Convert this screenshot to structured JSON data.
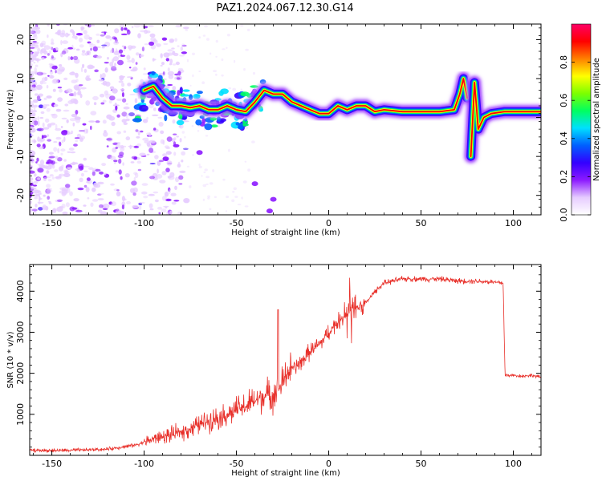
{
  "title": "PAZ1.2024.067.12.30.G14",
  "chart_data": [
    {
      "type": "heatmap",
      "xlabel": "Height of straight line (km)",
      "ylabel": "Frequency (Hz)",
      "xlim": [
        -162,
        115
      ],
      "ylim": [
        -25,
        24
      ],
      "x_ticks": [
        -150,
        -100,
        -50,
        0,
        50,
        100
      ],
      "y_ticks": [
        -20,
        -10,
        0,
        10,
        20
      ],
      "colorbar": {
        "label": "Normalized spectral amplitude",
        "range": [
          0,
          1
        ],
        "ticks": [
          0.0,
          0.2,
          0.4,
          0.6,
          0.8
        ],
        "colors": [
          "#ffffff",
          "#e6ccff",
          "#8c1aff",
          "#3300ff",
          "#0060ff",
          "#00e0ff",
          "#00ff60",
          "#7cff00",
          "#ffff00",
          "#ff8000",
          "#ff0000",
          "#ff0066"
        ]
      },
      "ridge": [
        {
          "x": -100,
          "f": 7
        },
        {
          "x": -95,
          "f": 8
        },
        {
          "x": -90,
          "f": 5
        },
        {
          "x": -85,
          "f": 3
        },
        {
          "x": -80,
          "f": 3
        },
        {
          "x": -75,
          "f": 2.5
        },
        {
          "x": -70,
          "f": 3
        },
        {
          "x": -65,
          "f": 2
        },
        {
          "x": -60,
          "f": 2
        },
        {
          "x": -55,
          "f": 3
        },
        {
          "x": -50,
          "f": 2
        },
        {
          "x": -45,
          "f": 1.5
        },
        {
          "x": -40,
          "f": 4
        },
        {
          "x": -35,
          "f": 7
        },
        {
          "x": -30,
          "f": 6
        },
        {
          "x": -25,
          "f": 6
        },
        {
          "x": -20,
          "f": 4
        },
        {
          "x": -15,
          "f": 3
        },
        {
          "x": -10,
          "f": 2
        },
        {
          "x": -5,
          "f": 1
        },
        {
          "x": 0,
          "f": 1
        },
        {
          "x": 5,
          "f": 3
        },
        {
          "x": 10,
          "f": 2
        },
        {
          "x": 15,
          "f": 3
        },
        {
          "x": 20,
          "f": 3
        },
        {
          "x": 25,
          "f": 1.5
        },
        {
          "x": 30,
          "f": 2
        },
        {
          "x": 40,
          "f": 1.5
        },
        {
          "x": 50,
          "f": 1.5
        },
        {
          "x": 60,
          "f": 1.5
        },
        {
          "x": 68,
          "f": 2
        },
        {
          "x": 71,
          "f": 6
        },
        {
          "x": 73,
          "f": 10
        },
        {
          "x": 75,
          "f": 5
        }
      ],
      "ridge2": [
        {
          "x": 77,
          "f": -10
        },
        {
          "x": 79,
          "f": 9
        },
        {
          "x": 81,
          "f": -3
        },
        {
          "x": 84,
          "f": 0
        },
        {
          "x": 88,
          "f": 1
        },
        {
          "x": 95,
          "f": 1.5
        },
        {
          "x": 105,
          "f": 1.5
        },
        {
          "x": 115,
          "f": 1.5
        }
      ]
    },
    {
      "type": "line",
      "xlabel": "Height of straight line (km)",
      "ylabel": "SNR (10 * v/v)",
      "xlim": [
        -162,
        115
      ],
      "ylim": [
        0,
        4650
      ],
      "x_ticks": [
        -150,
        -100,
        -50,
        0,
        50,
        100
      ],
      "y_ticks": [
        1000,
        2000,
        3000,
        4000
      ],
      "color": "#e8302a",
      "series": [
        {
          "x": [
            -162,
            -140,
            -120,
            -105,
            -95,
            -85,
            -75,
            -65,
            -55,
            -45,
            -35,
            -28,
            -22,
            -15,
            -10,
            -5,
            0,
            5,
            10,
            15,
            20,
            25,
            30,
            40,
            50,
            60,
            70,
            80,
            90,
            94.5,
            95.5,
            100,
            105,
            110,
            115
          ],
          "y": [
            120,
            120,
            150,
            250,
            400,
            500,
            650,
            850,
            1000,
            1200,
            1450,
            1500,
            2050,
            2250,
            2550,
            2700,
            3000,
            3250,
            3450,
            3600,
            3700,
            4000,
            4200,
            4300,
            4300,
            4300,
            4250,
            4250,
            4220,
            4200,
            1950,
            1950,
            1930,
            1950,
            1900
          ]
        }
      ]
    }
  ]
}
